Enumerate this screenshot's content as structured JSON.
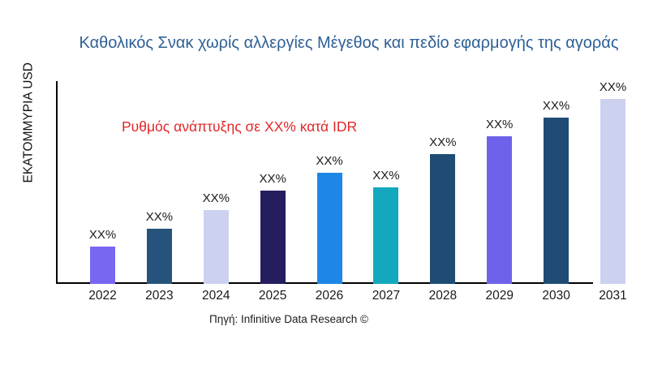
{
  "title": {
    "text": "Καθολικός Σνακ χωρίς αλλεργίες Μέγεθος και πεδίο εφαρμογής της αγοράς",
    "color": "#2e6095"
  },
  "y_axis": {
    "label": "ΕΚΑΤΟΜΜΥΡΙΑ USD"
  },
  "annotation": {
    "text": "Ρυθμός ανάπτυξης σε XX% κατά IDR",
    "color": "#e12727"
  },
  "source": {
    "text": "Πηγή: Infinitive Data Research ©"
  },
  "axis_color": "#000000",
  "chart_data": {
    "type": "bar",
    "title": "Καθολικός Σνακ χωρίς αλλεργίες Μέγεθος και πεδίο εφαρμογής της αγοράς",
    "xlabel": "",
    "ylabel": "ΕΚΑΤΟΜΜΥΡΙΑ USD",
    "categories": [
      "2022",
      "2023",
      "2024",
      "2025",
      "2026",
      "2027",
      "2028",
      "2029",
      "2030",
      "2031"
    ],
    "values": [
      46,
      68,
      91,
      115,
      137,
      119,
      160,
      182,
      205,
      228
    ],
    "value_labels": [
      "XX%",
      "XX%",
      "XX%",
      "XX%",
      "XX%",
      "XX%",
      "XX%",
      "XX%",
      "XX%",
      "XX%"
    ],
    "bar_colors": [
      "#7767f1",
      "#25537b",
      "#cdd1f0",
      "#241d5e",
      "#1c87e6",
      "#13a8bd",
      "#1f4b74",
      "#6f62ea",
      "#1f4b74",
      "#cdd1f0"
    ],
    "ylim": [
      0,
      250
    ],
    "grid": false,
    "legend": false,
    "annotation": "Ρυθμός ανάπτυξης σε XX% κατά IDR"
  }
}
